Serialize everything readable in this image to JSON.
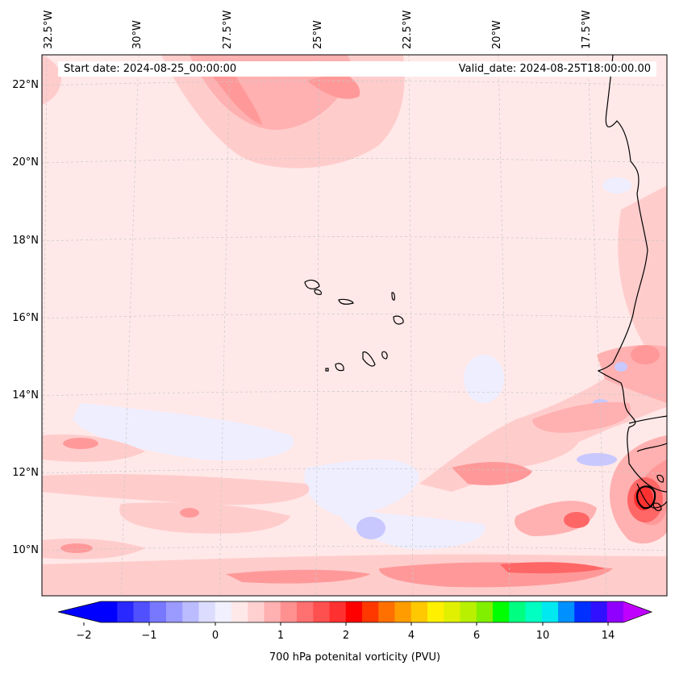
{
  "map": {
    "start_date": "Start date: 2024-08-25_00:00:00",
    "valid_date": "Valid_date: 2024-08-25T18:00:00.00",
    "longitude_labels": [
      "32.5°W",
      "30°W",
      "27.5°W",
      "25°W",
      "22.5°W",
      "20°W",
      "17.5°W"
    ],
    "latitude_labels": [
      "22°N",
      "20°N",
      "18°N",
      "16°N",
      "14°N",
      "12°N",
      "10°N"
    ],
    "colorbar": {
      "label": "700 hPa potenital vorticity (PVU)",
      "tick_labels": [
        "−2",
        "−1",
        "0",
        "1",
        "2",
        "4",
        "6",
        "10",
        "14"
      ],
      "colors": [
        "#0000ff",
        "#2828ff",
        "#5050ff",
        "#7878ff",
        "#9a9aff",
        "#bbbbff",
        "#dcdcff",
        "#f0f0ff",
        "#ffe8e8",
        "#ffd0d0",
        "#ffb0b0",
        "#ff9090",
        "#ff7070",
        "#ff5050",
        "#ff3030",
        "#ff0000",
        "#ff3800",
        "#ff7000",
        "#ff9c00",
        "#ffc800",
        "#fff000",
        "#e0f000",
        "#b8f000",
        "#80f000",
        "#00ff00",
        "#00ff80",
        "#00ffc0",
        "#00e8f0",
        "#0090ff",
        "#0030ff",
        "#3010ff",
        "#9000ff"
      ],
      "extend_min_color": "#0000ff",
      "extend_max_color": "#c000ff"
    },
    "colors": {
      "background_field": "#ffe8e8",
      "light_blue": "#eeeeff",
      "mid_blue": "#c8c8ff",
      "light_pink": "#ffcccc",
      "mid_red": "#ff9999",
      "strong_red": "#ff6666",
      "coast": "#000000",
      "grid": "#c8c8c8"
    }
  }
}
